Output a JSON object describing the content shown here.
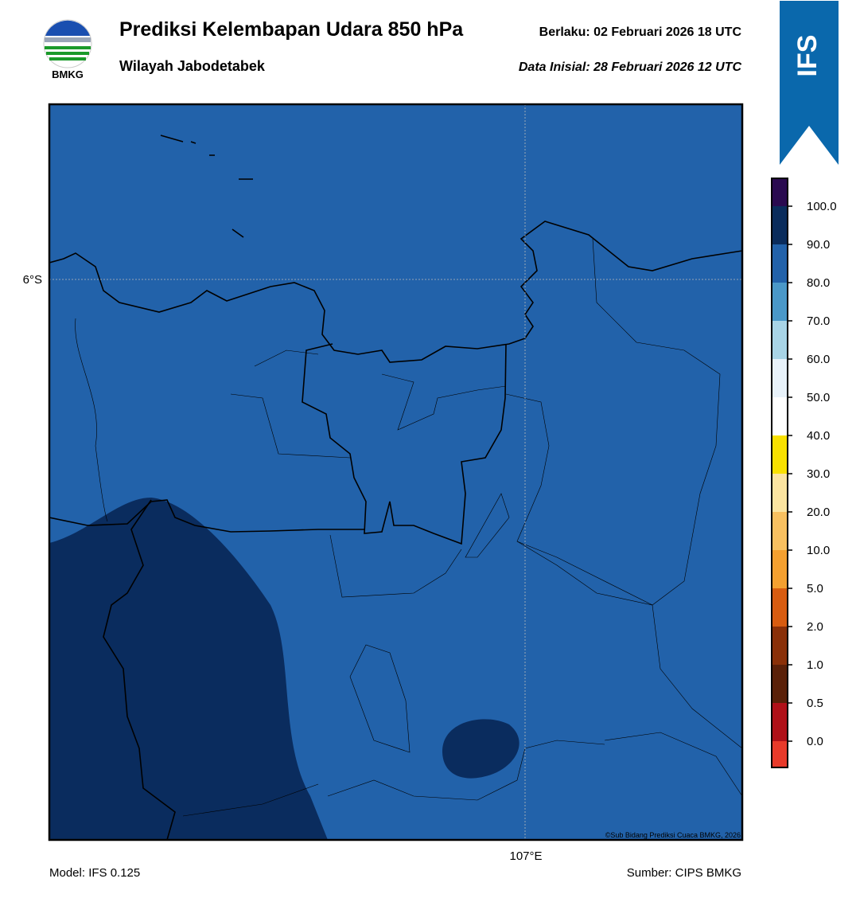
{
  "header": {
    "title": "Prediksi Kelembapan Udara 850 hPa",
    "valid": "Berlaku:  02 Februari 2026 18 UTC",
    "region": "Wilayah Jabodetabek",
    "init": "Data Inisial:  28 Februari 2026 12 UTC",
    "logo": "BMKG",
    "badge": "IFS"
  },
  "map": {
    "lat_label": "6°S",
    "lon_label": "107°E",
    "credit": "©Sub Bidang Prediksi Cuaca BMKG, 2026"
  },
  "colorbar": {
    "labels": [
      "0.0",
      "0.5",
      "1.0",
      "2.0",
      "5.0",
      "10.0",
      "20.0",
      "30.0",
      "40.0",
      "50.0",
      "60.0",
      "70.0",
      "80.0",
      "90.0",
      "100.0"
    ],
    "colors": [
      "#e83a2a",
      "#b01018",
      "#5a2008",
      "#8a3008",
      "#d85c10",
      "#f4a030",
      "#f8c060",
      "#fbe4a0",
      "#f8e000",
      "#ffffff",
      "#e8f2fa",
      "#a8d4e6",
      "#4a98c8",
      "#2262aa",
      "#0a2c5c",
      "#2a0a50"
    ]
  },
  "footer": {
    "model": "Model: IFS 0.125",
    "source": "Sumber: CIPS BMKG"
  }
}
